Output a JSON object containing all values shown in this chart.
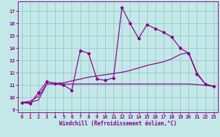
{
  "xlabel": "Windchill (Refroidissement éolien,°C)",
  "xlim": [
    -0.5,
    23.5
  ],
  "ylim": [
    8.8,
    17.8
  ],
  "yticks": [
    9,
    10,
    11,
    12,
    13,
    14,
    15,
    16,
    17
  ],
  "xticks": [
    0,
    1,
    2,
    3,
    4,
    5,
    6,
    7,
    8,
    9,
    10,
    11,
    12,
    13,
    14,
    15,
    16,
    17,
    18,
    19,
    20,
    21,
    22,
    23
  ],
  "bg_color": "#c4e8e8",
  "line_color": "#880088",
  "grid_color": "#99cccc",
  "line1_x": [
    0,
    1,
    2,
    3,
    4,
    5,
    6,
    7,
    8,
    9,
    10,
    11,
    12,
    13,
    14,
    15,
    16,
    17,
    18,
    19,
    20,
    21,
    22,
    23
  ],
  "line1_y": [
    9.6,
    9.5,
    10.4,
    11.3,
    11.15,
    11.0,
    10.6,
    13.8,
    13.6,
    11.5,
    11.4,
    11.6,
    17.3,
    16.0,
    14.8,
    15.9,
    15.6,
    15.3,
    14.9,
    14.0,
    13.6,
    11.9,
    11.1,
    10.9
  ],
  "line2_x": [
    0,
    1,
    2,
    3,
    4,
    5,
    6,
    7,
    8,
    9,
    10,
    11,
    12,
    13,
    14,
    15,
    16,
    17,
    18,
    19,
    20,
    21,
    22,
    23
  ],
  "line2_y": [
    9.6,
    9.6,
    9.8,
    11.1,
    11.1,
    11.1,
    11.1,
    11.1,
    11.1,
    11.1,
    11.1,
    11.1,
    11.1,
    11.1,
    11.1,
    11.1,
    11.1,
    11.1,
    11.1,
    11.1,
    11.1,
    11.05,
    11.0,
    10.9
  ],
  "line3_x": [
    0,
    1,
    2,
    3,
    4,
    5,
    6,
    7,
    8,
    9,
    10,
    11,
    12,
    13,
    14,
    15,
    16,
    17,
    18,
    19,
    20,
    21,
    22,
    23
  ],
  "line3_y": [
    9.6,
    9.7,
    10.1,
    11.1,
    11.15,
    11.2,
    11.35,
    11.5,
    11.65,
    11.75,
    11.85,
    11.95,
    12.05,
    12.2,
    12.4,
    12.6,
    12.75,
    12.9,
    13.15,
    13.5,
    13.65,
    12.0,
    11.1,
    10.9
  ]
}
